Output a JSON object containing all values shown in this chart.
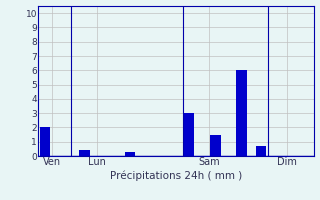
{
  "bar_positions": [
    0.5,
    3.5,
    7.0,
    11.5,
    13.5,
    15.5,
    17.0,
    19.0
  ],
  "bar_heights": [
    2.0,
    0.4,
    0.3,
    3.0,
    1.5,
    6.0,
    0.7,
    0.0
  ],
  "bar_colors": [
    "#0000cc",
    "#0000cc",
    "#0000cc",
    "#0000cc",
    "#0000cc",
    "#0000cc",
    "#0000cc",
    "#0000cc"
  ],
  "bar_width": 0.8,
  "xlim": [
    0,
    21
  ],
  "ylim": [
    0,
    10.5
  ],
  "yticks": [
    0,
    1,
    2,
    3,
    4,
    5,
    6,
    7,
    8,
    9,
    10
  ],
  "xtick_positions": [
    1.0,
    4.5,
    13.0,
    19.0
  ],
  "xtick_labels": [
    "Ven",
    "Lun",
    "Sam",
    "Dim"
  ],
  "vlines": [
    2.5,
    11.0,
    17.5
  ],
  "xlabel": "Précipitations 24h ( mm )",
  "background_color": "#e8f5f5",
  "grid_color": "#c0c0c0",
  "grid_color_strong": "#8888bb",
  "axis_color": "#0000aa",
  "text_color": "#333355",
  "ytick_fontsize": 6.5,
  "xtick_fontsize": 7.0,
  "xlabel_fontsize": 7.5
}
